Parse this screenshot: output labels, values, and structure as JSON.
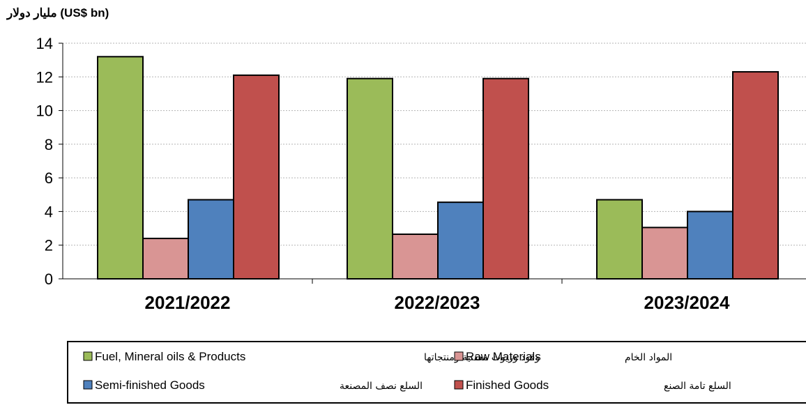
{
  "chart_data": {
    "type": "bar",
    "title": "",
    "unit_label": "مليار دولار (US$ bn)",
    "categories": [
      "2021/2022",
      "2022/2023",
      "2023/2024"
    ],
    "ylim": [
      0,
      14
    ],
    "yticks": [
      "0",
      "2",
      "4",
      "6",
      "8",
      "10",
      "12",
      "14"
    ],
    "grid": true,
    "legend_position": "bottom",
    "series": [
      {
        "name": "Fuel, Mineral oils & Products",
        "name_ar": "وقود وزيوت معدنية ومنتجاتها",
        "color": "#9BBB59",
        "values": [
          13.2,
          11.9,
          4.7
        ]
      },
      {
        "name": "Raw Materials",
        "name_ar": "المواد الخام",
        "color": "#D99594",
        "values": [
          2.4,
          2.65,
          3.05
        ]
      },
      {
        "name": "Semi-finished Goods",
        "name_ar": "السلع نصف المصنعة",
        "color": "#4F81BD",
        "values": [
          4.7,
          4.55,
          4.0
        ]
      },
      {
        "name": "Finished Goods",
        "name_ar": "السلع تامة الصنع",
        "color": "#C0504D",
        "values": [
          12.1,
          11.9,
          12.3
        ]
      }
    ]
  }
}
